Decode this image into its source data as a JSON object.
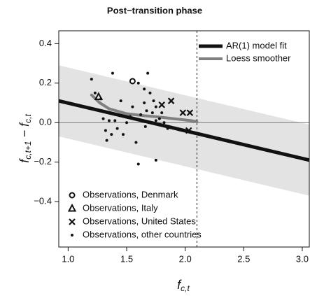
{
  "chart_data": {
    "type": "scatter",
    "title": "Post−transition phase",
    "xlabel": [
      "f",
      "c,t"
    ],
    "ylabel": [
      "f",
      "c,t+1",
      " − ",
      "f",
      "c,t"
    ],
    "xlim": [
      0.92,
      3.06
    ],
    "ylim": [
      -0.63,
      0.465
    ],
    "xticks": [
      {
        "value": 1.0,
        "label": "1.0"
      },
      {
        "value": 1.5,
        "label": "1.5"
      },
      {
        "value": 2.0,
        "label": "2.0"
      },
      {
        "value": 2.5,
        "label": "2.5"
      },
      {
        "value": 3.0,
        "label": "3.0"
      }
    ],
    "yticks": [
      {
        "value": -0.4,
        "label": "−0.4"
      },
      {
        "value": -0.2,
        "label": "−0.2"
      },
      {
        "value": 0.0,
        "label": "0.0"
      },
      {
        "value": 0.2,
        "label": "0.2"
      },
      {
        "value": 0.4,
        "label": "0.4"
      }
    ],
    "vline_x": 2.1,
    "hline_y": 0,
    "band": {
      "color": "#e3e3e3",
      "x": [
        0.92,
        3.06
      ],
      "upper": [
        0.29,
        -0.01
      ],
      "lower": [
        -0.07,
        -0.37
      ]
    },
    "lines": [
      {
        "name": "AR(1) model fit",
        "color": "#111111",
        "width": 5,
        "x": [
          0.92,
          3.06
        ],
        "values": [
          0.11,
          -0.19
        ]
      },
      {
        "name": "Loess smoother",
        "color": "#808080",
        "width": 4,
        "x": [
          1.2,
          1.27,
          1.35,
          1.5,
          1.65,
          1.75,
          1.9,
          2.05,
          2.1
        ],
        "values": [
          0.14,
          0.1,
          0.07,
          0.045,
          0.035,
          0.03,
          0.02,
          0.01,
          0.005
        ]
      }
    ],
    "series": [
      {
        "name": "Observations, Denmark",
        "marker": "circle",
        "color": "#111111",
        "x": [
          1.55
        ],
        "values": [
          0.21
        ]
      },
      {
        "name": "Observations, Italy",
        "marker": "triangle",
        "color": "#111111",
        "x": [
          1.26
        ],
        "values": [
          0.13
        ]
      },
      {
        "name": "Observations, United States",
        "marker": "cross",
        "color": "#111111",
        "x": [
          1.8,
          1.88,
          1.98,
          2.04,
          2.03
        ],
        "values": [
          0.09,
          0.11,
          0.05,
          0.05,
          -0.04
        ]
      },
      {
        "name": "Observations, other countries",
        "marker": "dot",
        "color": "#111111",
        "x": [
          1.2,
          1.38,
          1.23,
          1.28,
          1.45,
          1.3,
          1.35,
          1.4,
          1.32,
          1.37,
          1.33,
          1.42,
          1.47,
          1.5,
          1.55,
          1.6,
          1.65,
          1.67,
          1.72,
          1.62,
          1.7,
          1.73,
          1.75,
          1.75,
          1.78,
          1.66,
          1.58,
          1.6,
          1.75,
          1.85,
          1.82,
          1.8,
          1.68,
          1.65,
          1.53
        ],
        "values": [
          0.22,
          0.25,
          0.15,
          0.12,
          0.11,
          0.02,
          0.01,
          0.01,
          -0.04,
          -0.06,
          -0.09,
          -0.03,
          -0.06,
          0.0,
          0.08,
          0.2,
          0.1,
          0.06,
          0.05,
          0.04,
          0.15,
          0.11,
          0.08,
          0.01,
          0.02,
          -0.02,
          -0.1,
          -0.21,
          -0.19,
          -0.03,
          0.0,
          0.05,
          0.25,
          0.17,
          0.03
        ]
      }
    ]
  }
}
